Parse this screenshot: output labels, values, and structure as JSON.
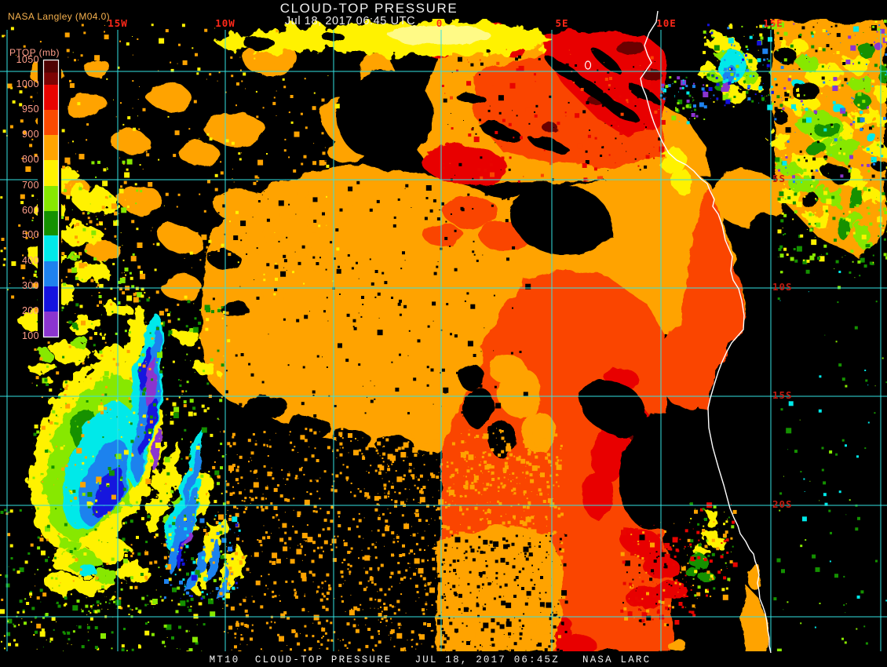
{
  "header": {
    "credit": "NASA Langley (M04.0)",
    "title": "CLOUD-TOP PRESSURE",
    "subtitle": "Jul 18, 2017 06:45 UTC"
  },
  "legend": {
    "title": "PTOP (mb)",
    "units": "mb",
    "ticks": [
      "1050",
      "1000",
      "950",
      "900",
      "800",
      "700",
      "600",
      "500",
      "400",
      "300",
      "200",
      "100"
    ],
    "segment_colors": [
      "#4F0303",
      "#7D0404",
      "#E80400",
      "#FA4A00",
      "#FFA300",
      "#FFF200",
      "#87E800",
      "#149100",
      "#00E9E9",
      "#1E82EE",
      "#1512DE",
      "#8B35CF"
    ]
  },
  "grid": {
    "longitude_labels": [
      "15W",
      "10W",
      "0",
      "5E",
      "10E",
      "15E"
    ],
    "latitude_labels": [
      "5S",
      "10S",
      "15S",
      "20S"
    ]
  },
  "footer": {
    "status_text": "MT10  CLOUD-TOP PRESSURE   JUL 18, 2017 06:45Z   NASA LARC"
  },
  "colors": {
    "orange": "#FFA300",
    "orange_red": "#FA4500",
    "red": "#E80400",
    "dark_red": "#6B0303",
    "maroon": "#4F0303",
    "yellow": "#FFF200",
    "pale_yellow": "#FFFA86",
    "chartreuse": "#87E800",
    "green": "#149100",
    "cyan": "#00E9E9",
    "blue": "#1E82EE",
    "deep_blue": "#1512DE",
    "purple": "#8B35CF",
    "grid_line": "#35E2E2",
    "coastline": "#FFFFFF",
    "lon_label": "#FF2819",
    "lat_label": "#C01B10",
    "legend_text": "#FF9E8A",
    "credit_text": "#F7B24E",
    "title_text": "#EFEFEF",
    "background": "#000000"
  }
}
